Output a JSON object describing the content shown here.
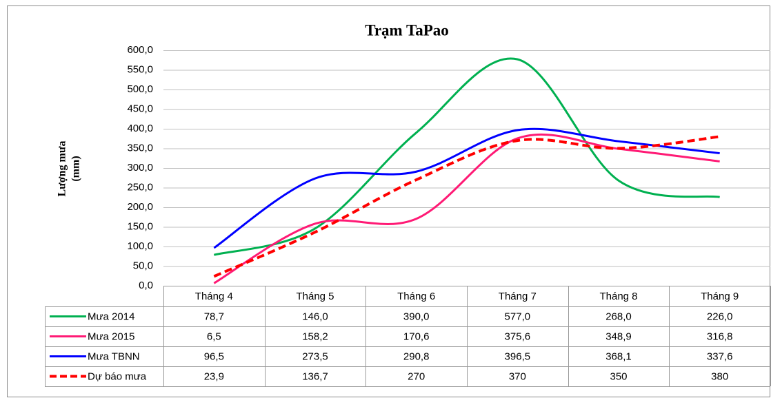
{
  "chart_data": {
    "type": "line",
    "title": "Trạm TaPao",
    "y_label": [
      "Lượng mưa",
      "(mm)"
    ],
    "categories": [
      "Tháng 4",
      "Tháng 5",
      "Tháng 6",
      "Tháng 7",
      "Tháng 8",
      "Tháng 9"
    ],
    "series": [
      {
        "name": "Mưa 2014",
        "color": "#00b050",
        "dashed": false,
        "values": [
          78.7,
          146.0,
          390.0,
          577.0,
          268.0,
          226.0
        ],
        "value_labels": [
          "78,7",
          "146,0",
          "390,0",
          "577,0",
          "268,0",
          "226,0"
        ]
      },
      {
        "name": "Mưa 2015",
        "color": "#ff1a75",
        "dashed": false,
        "values": [
          6.5,
          158.2,
          170.6,
          375.6,
          348.9,
          316.8
        ],
        "value_labels": [
          "6,5",
          "158,2",
          "170,6",
          "375,6",
          "348,9",
          "316,8"
        ]
      },
      {
        "name": "Mưa TBNN",
        "color": "#0000ff",
        "dashed": false,
        "values": [
          96.5,
          273.5,
          290.8,
          396.5,
          368.1,
          337.6
        ],
        "value_labels": [
          "96,5",
          "273,5",
          "290,8",
          "396,5",
          "368,1",
          "337,6"
        ]
      },
      {
        "name": "Dự báo mưa",
        "color": "#ff0000",
        "dashed": true,
        "values": [
          23.9,
          136.7,
          270,
          370,
          350,
          380
        ],
        "value_labels": [
          "23,9",
          "136,7",
          "270",
          "370",
          "350",
          "380"
        ]
      }
    ],
    "ylim": [
      0,
      600
    ],
    "yticks": [
      {
        "value": 0,
        "label": "0,0"
      },
      {
        "value": 50,
        "label": "50,0"
      },
      {
        "value": 100,
        "label": "100,0"
      },
      {
        "value": 150,
        "label": "150,0"
      },
      {
        "value": 200,
        "label": "200,0"
      },
      {
        "value": 250,
        "label": "250,0"
      },
      {
        "value": 300,
        "label": "300,0"
      },
      {
        "value": 350,
        "label": "350,0"
      },
      {
        "value": 400,
        "label": "400,0"
      },
      {
        "value": 450,
        "label": "450,0"
      },
      {
        "value": 500,
        "label": "500,0"
      },
      {
        "value": 550,
        "label": "550,0"
      },
      {
        "value": 600,
        "label": "600,0"
      }
    ],
    "grid": true,
    "smooth": true
  }
}
